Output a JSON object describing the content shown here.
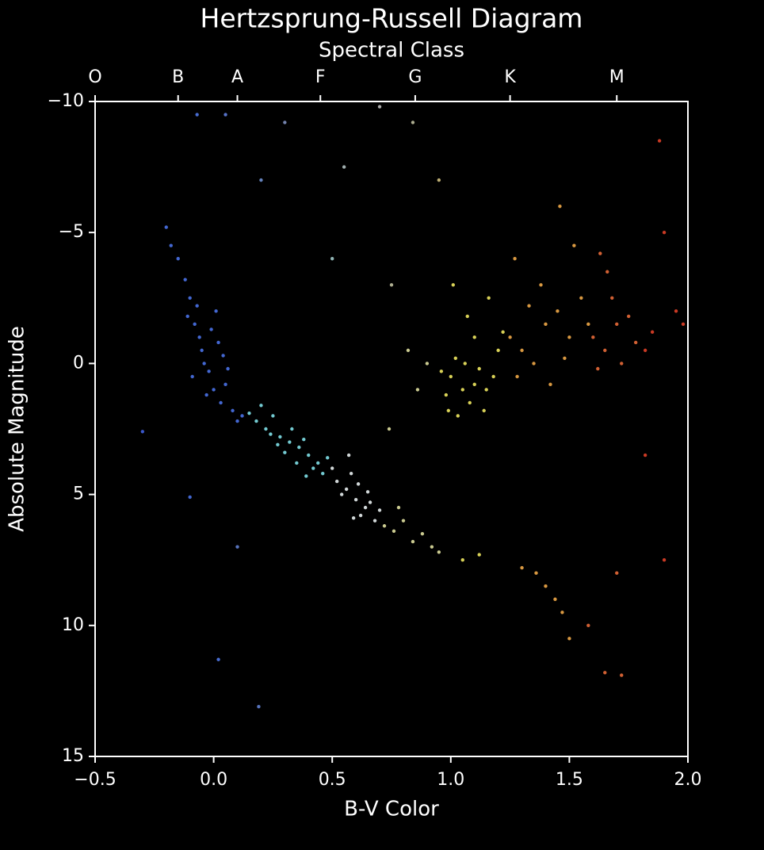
{
  "chart_data": {
    "type": "scatter",
    "title": "Hertzsprung-Russell Diagram",
    "x2label": "Spectral Class",
    "xlabel": "B-V Color",
    "ylabel": "Absolute Magnitude",
    "xlim": [
      -0.5,
      2.0
    ],
    "ylim": [
      15,
      -10
    ],
    "xticks": [
      {
        "value": -0.5,
        "label": "−0.5"
      },
      {
        "value": 0,
        "label": "0.0"
      },
      {
        "value": 0.5,
        "label": "0.5"
      },
      {
        "value": 1,
        "label": "1.0"
      },
      {
        "value": 1.5,
        "label": "1.5"
      },
      {
        "value": 2,
        "label": "2.0"
      }
    ],
    "yticks": [
      {
        "value": -10,
        "label": "−10"
      },
      {
        "value": -5,
        "label": "−5"
      },
      0,
      5,
      10,
      15
    ],
    "x2ticks": [
      {
        "value": -0.5,
        "label": "O"
      },
      {
        "value": -0.15,
        "label": "B"
      },
      {
        "value": 0.1,
        "label": "A"
      },
      {
        "value": 0.45,
        "label": "F"
      },
      {
        "value": 0.85,
        "label": "G"
      },
      {
        "value": 1.25,
        "label": "K"
      },
      {
        "value": 1.7,
        "label": "M"
      }
    ],
    "x": [
      -0.08,
      -0.05,
      -0.02,
      0.0,
      0.03,
      -0.1,
      -0.12,
      -0.04,
      0.02,
      0.05,
      -0.15,
      -0.06,
      0.08,
      -0.09,
      0.01,
      0.06,
      -0.03,
      -0.18,
      0.1,
      -0.01,
      -0.2,
      0.04,
      -0.07,
      0.12,
      -0.11,
      0.18,
      0.22,
      0.28,
      0.32,
      0.36,
      0.4,
      0.44,
      0.25,
      0.3,
      0.38,
      0.42,
      0.35,
      0.2,
      0.46,
      0.33,
      0.27,
      0.15,
      0.48,
      0.39,
      0.24,
      0.52,
      0.56,
      0.6,
      0.64,
      0.58,
      0.62,
      0.54,
      0.66,
      0.68,
      0.5,
      0.57,
      0.61,
      0.7,
      0.65,
      0.59,
      0.72,
      0.76,
      0.8,
      0.84,
      0.88,
      0.92,
      0.78,
      0.86,
      0.9,
      0.82,
      0.95,
      0.74,
      1.0,
      1.05,
      1.1,
      1.02,
      1.08,
      1.12,
      0.98,
      1.15,
      1.06,
      1.03,
      1.18,
      1.1,
      0.96,
      1.14,
      1.07,
      1.2,
      1.01,
      1.16,
      1.05,
      1.12,
      1.22,
      0.99,
      1.25,
      1.3,
      1.35,
      1.4,
      1.28,
      1.45,
      1.38,
      1.5,
      1.42,
      1.33,
      1.48,
      1.55,
      1.27,
      1.36,
      1.4,
      1.44,
      1.47,
      1.5,
      1.3,
      1.52,
      1.46,
      1.58,
      1.6,
      1.65,
      1.7,
      1.62,
      1.68,
      1.72,
      1.75,
      1.66,
      1.78,
      1.63,
      1.65,
      1.72,
      1.58,
      1.7,
      1.85,
      1.9,
      1.95,
      1.82,
      1.88,
      1.98,
      1.9,
      1.82,
      0.05,
      -0.07,
      0.3,
      0.7,
      0.84,
      0.2,
      0.55,
      0.95,
      0.5,
      0.75,
      0.02,
      0.19,
      -0.3,
      -0.1,
      0.1
    ],
    "values": [
      -1.5,
      -0.5,
      0.3,
      1.0,
      1.5,
      -2.5,
      -3.2,
      0.0,
      -0.8,
      0.8,
      -4.0,
      -1.0,
      1.8,
      0.5,
      -2.0,
      0.2,
      1.2,
      -4.5,
      2.2,
      -1.3,
      -5.2,
      -0.3,
      -2.2,
      2.0,
      -1.8,
      2.2,
      2.5,
      2.8,
      3.0,
      3.2,
      3.5,
      3.8,
      2.0,
      3.4,
      2.9,
      4.0,
      3.8,
      1.6,
      4.2,
      2.5,
      3.1,
      1.9,
      3.6,
      4.3,
      2.7,
      4.5,
      4.8,
      5.2,
      5.5,
      4.2,
      5.8,
      5.0,
      5.3,
      6.0,
      4.0,
      3.5,
      4.6,
      5.6,
      4.9,
      5.9,
      6.2,
      6.4,
      6.0,
      6.8,
      6.5,
      7.0,
      5.5,
      1.0,
      0.0,
      -0.5,
      7.2,
      2.5,
      0.5,
      1.0,
      0.8,
      -0.2,
      1.5,
      0.2,
      1.2,
      1.0,
      0.0,
      2.0,
      0.5,
      -1.0,
      0.3,
      1.8,
      -1.8,
      -0.5,
      -3.0,
      -2.5,
      7.5,
      7.3,
      -1.2,
      1.8,
      -1.0,
      -0.5,
      0.0,
      -1.5,
      0.5,
      -2.0,
      -3.0,
      -1.0,
      0.8,
      -2.2,
      -0.2,
      -2.5,
      -4.0,
      8.0,
      8.5,
      9.0,
      9.5,
      10.5,
      7.8,
      -4.5,
      -6.0,
      -1.5,
      -1.0,
      -0.5,
      -1.5,
      0.2,
      -2.5,
      0.0,
      -1.8,
      -3.5,
      -0.8,
      -4.2,
      11.8,
      11.9,
      10.0,
      8.0,
      -1.2,
      -5.0,
      -2.0,
      -0.5,
      -8.5,
      -1.5,
      7.5,
      3.5,
      -9.5,
      -9.5,
      -9.2,
      -9.8,
      -9.2,
      -7.0,
      -7.5,
      -7.0,
      -4.0,
      -3.0,
      11.3,
      13.1,
      2.6,
      5.1,
      7.0
    ],
    "colors": [
      "#4a72e8",
      "#4a72e8",
      "#4a72e8",
      "#4a72e8",
      "#4a72e8",
      "#4a72e8",
      "#4a72e8",
      "#4a72e8",
      "#4a72e8",
      "#4a72e8",
      "#4a72e8",
      "#4a72e8",
      "#4a72e8",
      "#4a72e8",
      "#4a72e8",
      "#4a72e8",
      "#4a72e8",
      "#4a72e8",
      "#4a72e8",
      "#4a72e8",
      "#4a72e8",
      "#4a72e8",
      "#4a72e8",
      "#4a72e8",
      "#4a72e8",
      "#80e0e8",
      "#80e0e8",
      "#80e0e8",
      "#80e0e8",
      "#80e0e8",
      "#80e0e8",
      "#80e0e8",
      "#80e0e8",
      "#80e0e8",
      "#80e0e8",
      "#80e0e8",
      "#80e0e8",
      "#80e0e8",
      "#80e0e8",
      "#80e0e8",
      "#80e0e8",
      "#80e0e8",
      "#80e0e8",
      "#80e0e8",
      "#80e0e8",
      "#e8eef0",
      "#e8eef0",
      "#e8eef0",
      "#e8eef0",
      "#e8eef0",
      "#e8eef0",
      "#e8eef0",
      "#e8eef0",
      "#e8eef0",
      "#e8eef0",
      "#e8eef0",
      "#e8eef0",
      "#e8eef0",
      "#e8eef0",
      "#e8eef0",
      "#e0e0a0",
      "#e0e0a0",
      "#e0e0a0",
      "#e0e0a0",
      "#e0e0a0",
      "#e0e0a0",
      "#e0e0a0",
      "#e0e0a0",
      "#e0e0a0",
      "#e0e0a0",
      "#e0e0a0",
      "#e0e0a0",
      "#f0e860",
      "#f0e860",
      "#f0e860",
      "#f0e860",
      "#f0e860",
      "#f0e860",
      "#f0e860",
      "#f0e860",
      "#f0e860",
      "#f0e860",
      "#f0e860",
      "#f0e860",
      "#f0e860",
      "#f0e860",
      "#f0e860",
      "#f0e860",
      "#f0e860",
      "#f0e860",
      "#f0e860",
      "#f0e860",
      "#f0e860",
      "#f0e860",
      "#f0a848",
      "#f0a848",
      "#f0a848",
      "#f0a848",
      "#f0a848",
      "#f0a848",
      "#f0a848",
      "#f0a848",
      "#f0a848",
      "#f0a848",
      "#f0a848",
      "#f0a848",
      "#f0a848",
      "#f0a848",
      "#f0a848",
      "#f0a848",
      "#f0a848",
      "#f0a848",
      "#f0a848",
      "#f0a848",
      "#f0a848",
      "#f0a848",
      "#e86a38",
      "#e86a38",
      "#e86a38",
      "#e86a38",
      "#e86a38",
      "#e86a38",
      "#e86a38",
      "#e86a38",
      "#e86a38",
      "#e86a38",
      "#e86a38",
      "#e86a38",
      "#e86a38",
      "#e86a38",
      "#e04028",
      "#e04028",
      "#e04028",
      "#e04028",
      "#e04028",
      "#e04028",
      "#e04028",
      "#e04028",
      "#6080e0",
      "#5078e8",
      "#8090c0",
      "#c0c0c0",
      "#c0c0a0",
      "#7090d0",
      "#b0c0c0",
      "#d0c080",
      "#a0c8c8",
      "#c0c0a0",
      "#5078e8",
      "#6080d0",
      "#4060e0",
      "#4a72e8",
      "#6080d0"
    ]
  }
}
